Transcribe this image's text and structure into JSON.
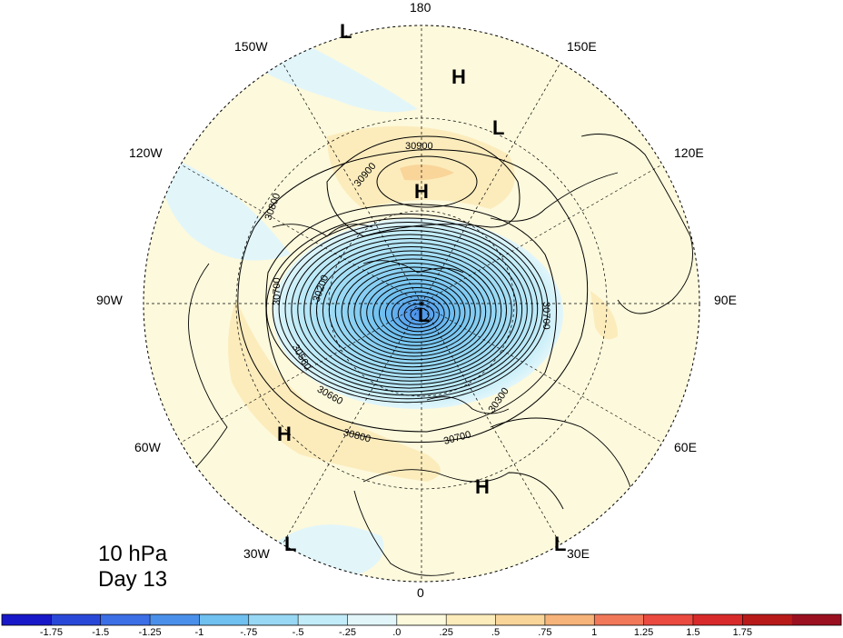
{
  "info": {
    "level": "10 hPa",
    "day": "Day 13"
  },
  "longitude_labels": [
    "180",
    "150E",
    "120E",
    "90E",
    "60E",
    "30E",
    "0",
    "30W",
    "60W",
    "90W",
    "120W",
    "150W"
  ],
  "pressure_systems": [
    {
      "type": "L"
    },
    {
      "type": "H"
    },
    {
      "type": "L"
    },
    {
      "type": "H"
    },
    {
      "type": "L"
    },
    {
      "type": "H"
    },
    {
      "type": "H"
    },
    {
      "type": "L"
    },
    {
      "type": "L"
    }
  ],
  "contour_labels": [
    "30900",
    "30900",
    "30800",
    "30700",
    "30200",
    "30560",
    "30660",
    "30800",
    "30700",
    "30700",
    "30300"
  ],
  "colorbar": {
    "colors": [
      "#1818c8",
      "#2a48d8",
      "#3c6ee6",
      "#4a90ea",
      "#70c0f0",
      "#98d8f4",
      "#c2ecf8",
      "#e2f6fa",
      "#fdf9dc",
      "#fcecbc",
      "#f9d59a",
      "#f6b37a",
      "#f2785a",
      "#ea4a40",
      "#d82a2a",
      "#b81a1a",
      "#9a1020"
    ],
    "tick_labels": [
      "-1.75",
      "-1.5",
      "-1.25",
      "-1",
      "-.75",
      "-.5",
      "-.25",
      ".0",
      ".25",
      ".5",
      ".75",
      "1",
      "1.25",
      "1.5",
      "1.75"
    ]
  }
}
